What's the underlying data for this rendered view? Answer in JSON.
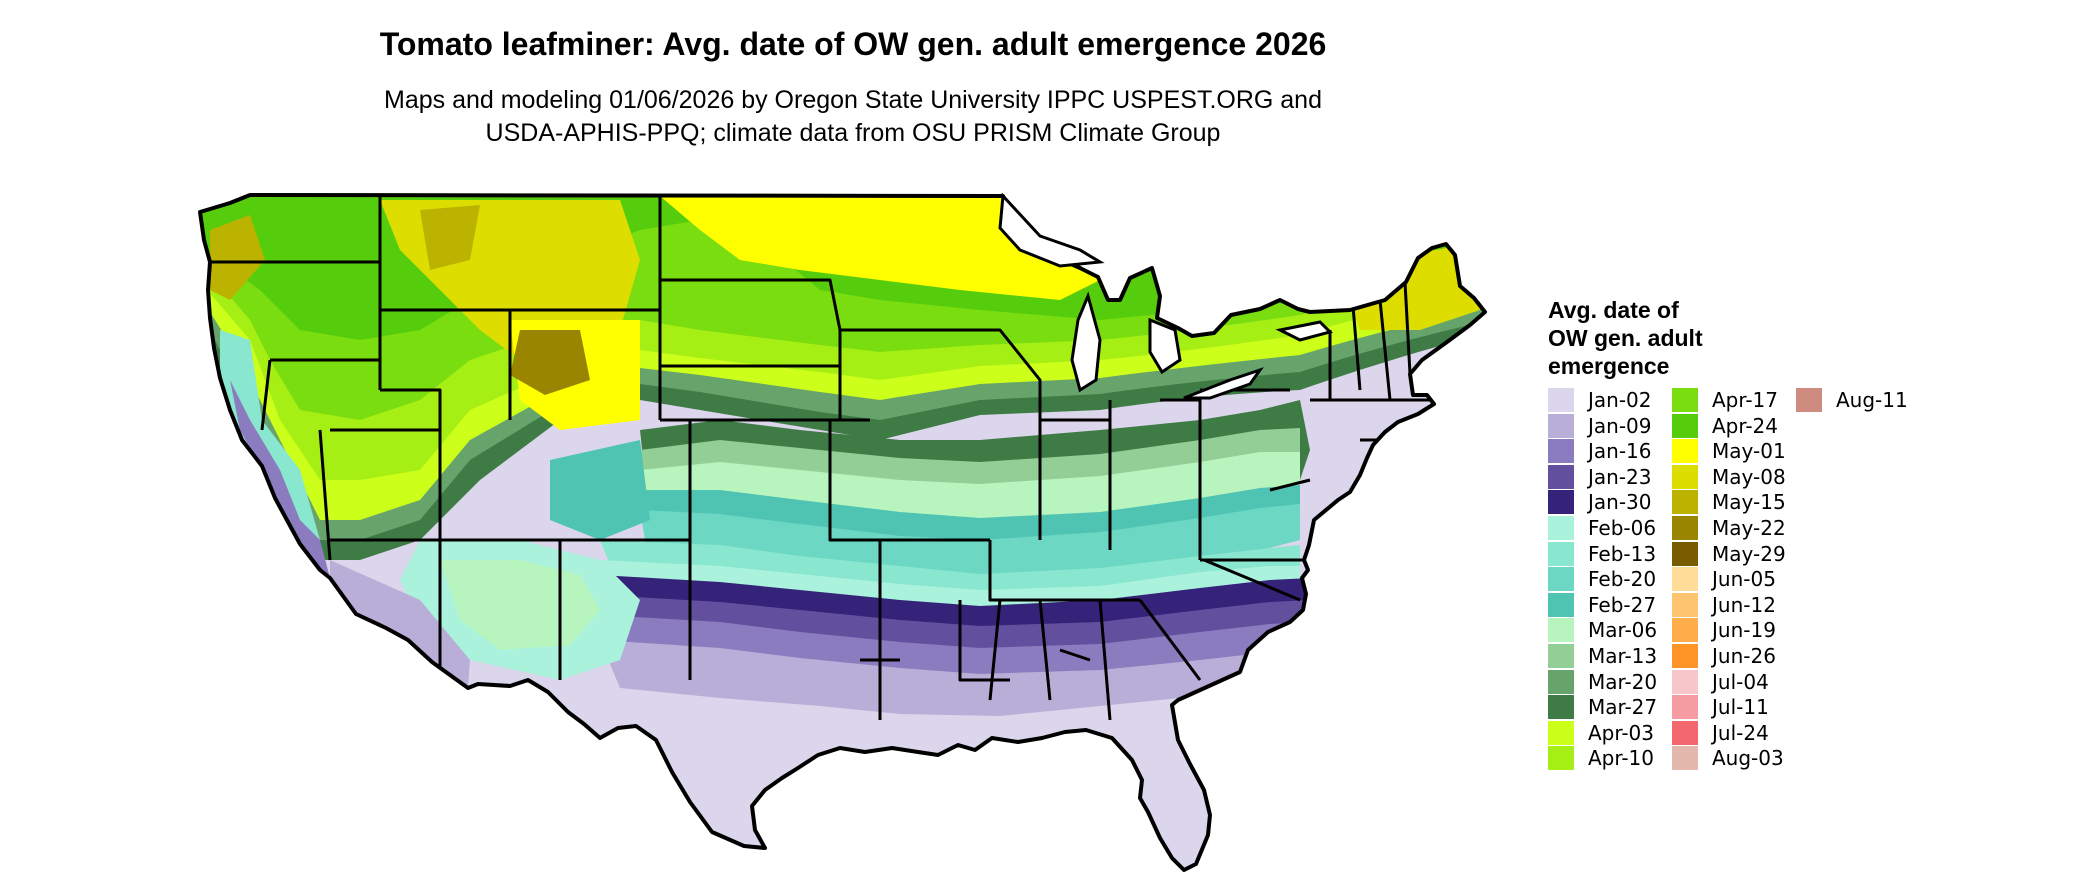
{
  "title": "Tomato leafminer: Avg. date of OW gen. adult emergence 2026",
  "subtitle": {
    "line1": "Maps and modeling 01/06/2026 by Oregon State University IPPC USPEST.ORG and",
    "line2": "USDA-APHIS-PPQ; climate data from OSU PRISM Climate Group"
  },
  "map": {
    "region": "Contiguous United States",
    "outline_color": "#000000",
    "background_color": "#ffffff"
  },
  "legend": {
    "title_lines": [
      "Avg. date of",
      "OW gen. adult",
      "emergence"
    ],
    "items": [
      {
        "label": "Jan-02",
        "color": "#dcd6ec"
      },
      {
        "label": "Jan-09",
        "color": "#b9aed7"
      },
      {
        "label": "Jan-16",
        "color": "#8b7cbf"
      },
      {
        "label": "Jan-23",
        "color": "#62509f"
      },
      {
        "label": "Jan-30",
        "color": "#35237a"
      },
      {
        "label": "Feb-06",
        "color": "#aaf2dc"
      },
      {
        "label": "Feb-13",
        "color": "#89e6cf"
      },
      {
        "label": "Feb-20",
        "color": "#6cd7c2"
      },
      {
        "label": "Feb-27",
        "color": "#4fc4b3"
      },
      {
        "label": "Mar-06",
        "color": "#b8f5be"
      },
      {
        "label": "Mar-13",
        "color": "#92ce95"
      },
      {
        "label": "Mar-20",
        "color": "#67a46b"
      },
      {
        "label": "Mar-27",
        "color": "#3f7b45"
      },
      {
        "label": "Apr-03",
        "color": "#ccff1a"
      },
      {
        "label": "Apr-10",
        "color": "#a6ef14"
      },
      {
        "label": "Apr-17",
        "color": "#79dd10"
      },
      {
        "label": "Apr-24",
        "color": "#55cd0c"
      },
      {
        "label": "May-01",
        "color": "#ffff00"
      },
      {
        "label": "May-08",
        "color": "#dddd00"
      },
      {
        "label": "May-15",
        "color": "#bbb300"
      },
      {
        "label": "May-22",
        "color": "#9a8500"
      },
      {
        "label": "May-29",
        "color": "#7a5c00"
      },
      {
        "label": "Jun-05",
        "color": "#ffdd99"
      },
      {
        "label": "Jun-12",
        "color": "#ffc470"
      },
      {
        "label": "Jun-19",
        "color": "#ffad4a"
      },
      {
        "label": "Jun-26",
        "color": "#ff9526"
      },
      {
        "label": "Jul-04",
        "color": "#f7c6cb"
      },
      {
        "label": "Jul-11",
        "color": "#f59ca2"
      },
      {
        "label": "Jul-24",
        "color": "#f2686e"
      },
      {
        "label": "Aug-03",
        "color": "#e4b9ad"
      },
      {
        "label": "Aug-11",
        "color": "#cf8b80"
      }
    ]
  }
}
